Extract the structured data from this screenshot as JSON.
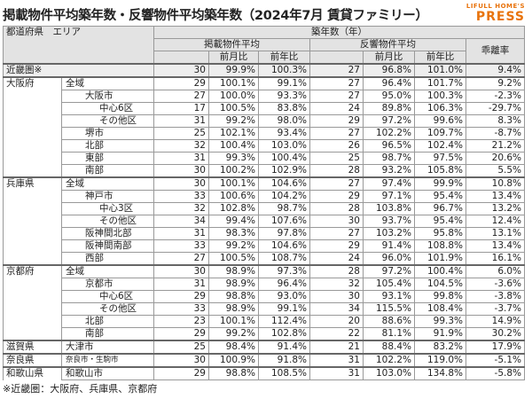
{
  "header": {
    "title": "掲載物件平均築年数・反響物件平均築年数（2024年7月 賃貸ファミリー）",
    "logo_top": "LIFULL HOME'S",
    "logo_bottom": "PRESS"
  },
  "table": {
    "columns": {
      "area": "都道府県　エリア",
      "age": "築年数（年）",
      "listed": "掲載物件平均",
      "inquired": "反響物件平均",
      "mom": "前月比",
      "yoy": "前年比",
      "gap": "乖離率"
    },
    "rows": [
      {
        "pref": "近畿圏※",
        "cells": [
          "30",
          "99.9%",
          "100.3%",
          "27",
          "96.8%",
          "101.0%",
          "9.4%"
        ]
      },
      {
        "pref": "大阪府",
        "area": "全域",
        "cells": [
          "29",
          "100.1%",
          "99.1%",
          "27",
          "96.4%",
          "101.7%",
          "9.2%"
        ]
      },
      {
        "area": "大阪市",
        "cells": [
          "27",
          "100.0%",
          "93.3%",
          "27",
          "95.0%",
          "100.3%",
          "-2.3%"
        ]
      },
      {
        "area": "中心6区",
        "cells": [
          "17",
          "100.5%",
          "83.8%",
          "24",
          "89.8%",
          "106.3%",
          "-29.7%"
        ]
      },
      {
        "area": "その他区",
        "cells": [
          "31",
          "99.2%",
          "98.0%",
          "29",
          "97.2%",
          "99.6%",
          "8.3%"
        ]
      },
      {
        "area": "堺市",
        "cells": [
          "25",
          "102.1%",
          "93.4%",
          "27",
          "102.2%",
          "109.7%",
          "-8.7%"
        ]
      },
      {
        "area": "北部",
        "cells": [
          "32",
          "100.4%",
          "103.0%",
          "26",
          "96.5%",
          "102.4%",
          "21.2%"
        ]
      },
      {
        "area": "東部",
        "cells": [
          "31",
          "99.3%",
          "100.4%",
          "25",
          "98.7%",
          "97.5%",
          "20.6%"
        ]
      },
      {
        "area": "南部",
        "cells": [
          "30",
          "100.2%",
          "102.9%",
          "28",
          "93.2%",
          "105.8%",
          "5.5%"
        ]
      },
      {
        "pref": "兵庫県",
        "area": "全域",
        "cells": [
          "30",
          "100.1%",
          "104.6%",
          "27",
          "97.4%",
          "99.9%",
          "10.8%"
        ]
      },
      {
        "area": "神戸市",
        "cells": [
          "33",
          "100.6%",
          "104.2%",
          "29",
          "97.1%",
          "95.4%",
          "13.4%"
        ]
      },
      {
        "area": "中心3区",
        "cells": [
          "32",
          "102.8%",
          "98.7%",
          "28",
          "103.8%",
          "96.7%",
          "13.2%"
        ]
      },
      {
        "area": "その他区",
        "cells": [
          "34",
          "99.4%",
          "107.6%",
          "30",
          "93.7%",
          "95.4%",
          "12.4%"
        ]
      },
      {
        "area": "阪神間北部",
        "cells": [
          "31",
          "98.3%",
          "97.8%",
          "27",
          "103.2%",
          "95.8%",
          "13.1%"
        ]
      },
      {
        "area": "阪神間南部",
        "cells": [
          "33",
          "99.2%",
          "104.6%",
          "29",
          "91.4%",
          "108.8%",
          "13.4%"
        ]
      },
      {
        "area": "西部",
        "cells": [
          "27",
          "100.5%",
          "108.7%",
          "24",
          "96.0%",
          "101.9%",
          "16.1%"
        ]
      },
      {
        "pref": "京都府",
        "area": "全域",
        "cells": [
          "30",
          "98.9%",
          "97.3%",
          "28",
          "97.2%",
          "100.4%",
          "6.0%"
        ]
      },
      {
        "area": "京都市",
        "cells": [
          "31",
          "98.9%",
          "96.4%",
          "32",
          "105.4%",
          "104.5%",
          "-3.6%"
        ]
      },
      {
        "area": "中心6区",
        "cells": [
          "29",
          "98.8%",
          "93.0%",
          "30",
          "93.1%",
          "99.8%",
          "-3.8%"
        ]
      },
      {
        "area": "その他区",
        "cells": [
          "33",
          "98.9%",
          "99.1%",
          "34",
          "115.5%",
          "108.4%",
          "-3.7%"
        ]
      },
      {
        "area": "北部",
        "cells": [
          "23",
          "100.1%",
          "112.4%",
          "20",
          "88.6%",
          "99.3%",
          "14.9%"
        ]
      },
      {
        "area": "南部",
        "cells": [
          "29",
          "99.2%",
          "102.8%",
          "22",
          "81.1%",
          "91.9%",
          "30.2%"
        ]
      },
      {
        "pref": "滋賀県",
        "area": "大津市",
        "cells": [
          "25",
          "98.4%",
          "91.4%",
          "21",
          "88.4%",
          "83.2%",
          "17.9%"
        ]
      },
      {
        "pref": "奈良県",
        "area": "奈良市・生駒市",
        "cells": [
          "30",
          "100.9%",
          "91.8%",
          "31",
          "102.2%",
          "119.0%",
          "-5.1%"
        ]
      },
      {
        "pref": "和歌山県",
        "area": "和歌山市",
        "cells": [
          "29",
          "98.8%",
          "108.5%",
          "31",
          "103.0%",
          "134.8%",
          "-5.8%"
        ]
      }
    ]
  },
  "footnote": "※近畿圏：大阪府、兵庫県、京都府"
}
